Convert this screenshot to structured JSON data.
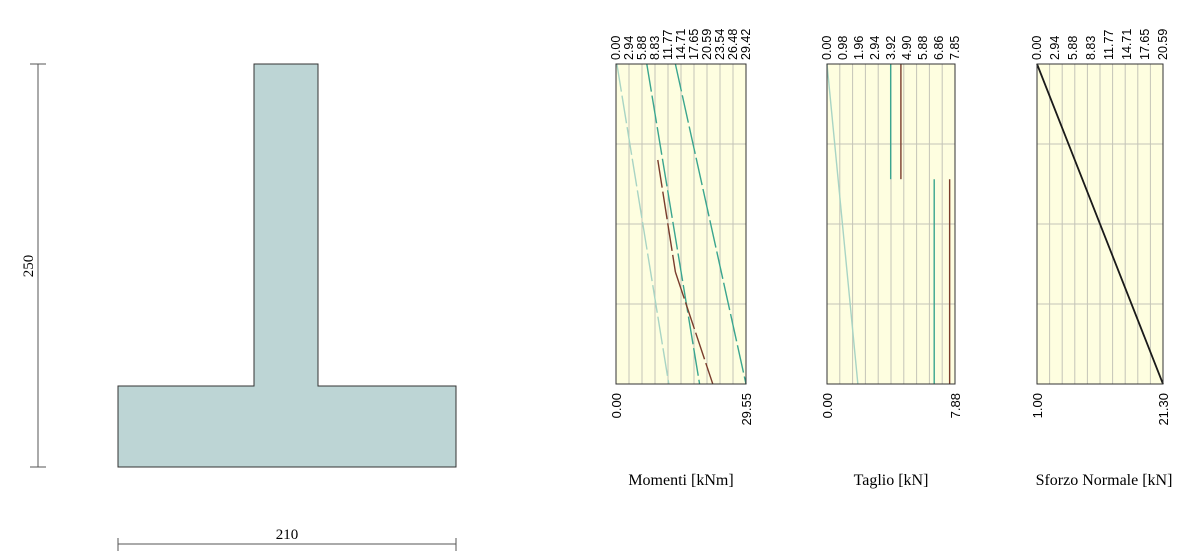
{
  "section": {
    "height_label": "250",
    "width_label": "210",
    "fill": "#bdd5d5",
    "stroke": "#333333"
  },
  "colors": {
    "plot_bg": "#fefee0",
    "grid": "#c4c4b8",
    "teal": "#3aa58f",
    "brown": "#7a3c2c",
    "light_teal": "#a8d4c4",
    "black": "#1a1a1a"
  },
  "panels": [
    {
      "title": "Momenti [kNm]",
      "top_ticks": [
        "0.00",
        "2.94",
        "5.88",
        "8.83",
        "11.77",
        "14.71",
        "17.65",
        "20.59",
        "23.54",
        "26.48",
        "29.42"
      ],
      "bottom_ticks": [
        "0.00",
        "29.55"
      ],
      "xlim": [
        0,
        29.55
      ]
    },
    {
      "title": "Taglio [kN]",
      "top_ticks": [
        "0.00",
        "0.98",
        "1.96",
        "2.94",
        "3.92",
        "4.90",
        "5.88",
        "6.86",
        "7.85"
      ],
      "bottom_ticks": [
        "0.00",
        "7.88"
      ],
      "xlim": [
        0,
        7.88
      ]
    },
    {
      "title": "Sforzo Normale [kN]",
      "top_ticks": [
        "0.00",
        "2.94",
        "5.88",
        "8.83",
        "11.77",
        "14.71",
        "17.65",
        "20.59"
      ],
      "bottom_ticks": [
        "1.00",
        "21.30"
      ],
      "xlim": [
        1.0,
        21.3
      ]
    }
  ],
  "chart_data": [
    {
      "type": "line",
      "title": "",
      "xlabel": "Momenti [kNm]",
      "xlim": [
        0,
        29.55
      ],
      "ylim": [
        0,
        1
      ],
      "grid": true,
      "series": [
        {
          "color": "teal",
          "style": "dashed",
          "points": [
            [
              7.0,
              0.0
            ],
            [
              19.0,
              1.0
            ]
          ]
        },
        {
          "color": "brown",
          "style": "dashed",
          "points": [
            [
              9.5,
              0.3
            ],
            [
              13.5,
              0.65
            ]
          ]
        },
        {
          "color": "brown",
          "style": "dashed",
          "points": [
            [
              13.5,
              0.65
            ],
            [
              22.0,
              1.0
            ]
          ]
        },
        {
          "color": "teal",
          "style": "dashed",
          "points": [
            [
              13.5,
              0.0
            ],
            [
              29.55,
              1.0
            ]
          ]
        },
        {
          "color": "light_teal",
          "style": "dashed",
          "points": [
            [
              0.2,
              0.0
            ],
            [
              12.0,
              1.0
            ]
          ]
        }
      ]
    },
    {
      "type": "line",
      "title": "",
      "xlabel": "Taglio [kN]",
      "xlim": [
        0,
        7.88
      ],
      "ylim": [
        0,
        1
      ],
      "grid": true,
      "series": [
        {
          "color": "light_teal",
          "style": "solid",
          "points": [
            [
              0.0,
              0.0
            ],
            [
              1.9,
              1.0
            ]
          ]
        },
        {
          "color": "teal",
          "style": "solid",
          "points": [
            [
              3.92,
              0.0
            ],
            [
              3.92,
              0.36
            ]
          ]
        },
        {
          "color": "brown",
          "style": "solid",
          "points": [
            [
              4.55,
              0.0
            ],
            [
              4.55,
              0.36
            ]
          ]
        },
        {
          "color": "teal",
          "style": "solid",
          "points": [
            [
              6.6,
              0.36
            ],
            [
              6.6,
              1.0
            ]
          ]
        },
        {
          "color": "brown",
          "style": "solid",
          "points": [
            [
              7.55,
              0.36
            ],
            [
              7.55,
              1.0
            ]
          ]
        }
      ]
    },
    {
      "type": "line",
      "title": "",
      "xlabel": "Sforzo Normale [kN]",
      "xlim": [
        1.0,
        21.3
      ],
      "ylim": [
        0,
        1
      ],
      "grid": true,
      "series": [
        {
          "color": "black",
          "style": "solid",
          "points": [
            [
              1.0,
              0.0
            ],
            [
              21.3,
              1.0
            ]
          ]
        }
      ]
    }
  ]
}
